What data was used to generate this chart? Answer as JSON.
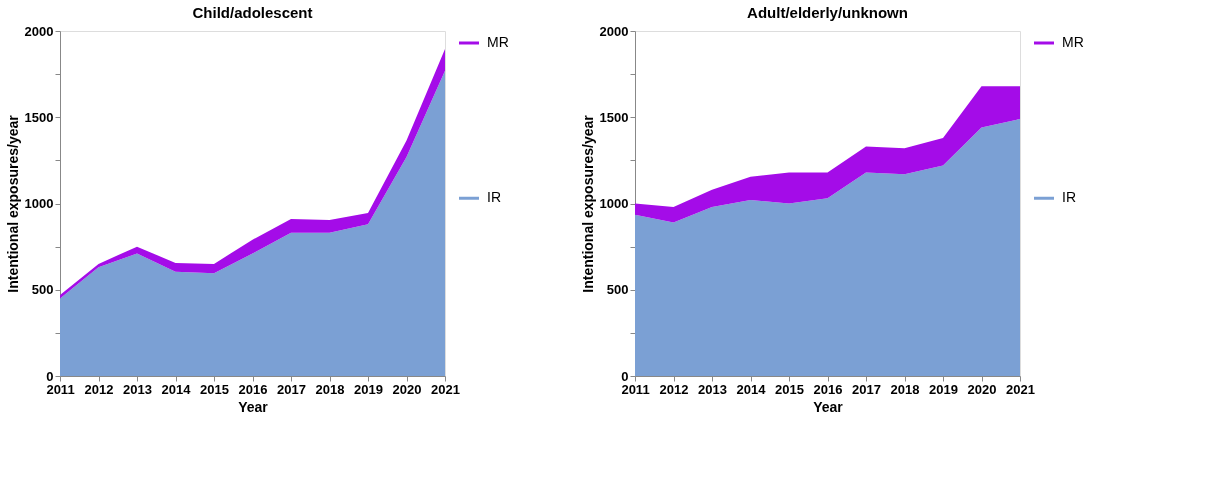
{
  "chart_data": [
    {
      "type": "area",
      "title": "Child/adolescent",
      "xlabel": "Year",
      "ylabel": "Intentional exposures/year",
      "stacked": true,
      "legend": "right",
      "grid": false,
      "x": [
        2011,
        2012,
        2013,
        2014,
        2015,
        2016,
        2017,
        2018,
        2019,
        2020,
        2021
      ],
      "series": [
        {
          "name": "IR",
          "color": "#7ba0d4",
          "values": [
            450,
            630,
            710,
            605,
            595,
            710,
            830,
            830,
            880,
            1270,
            1770
          ]
        },
        {
          "name": "MR",
          "color": "#a40ce8",
          "values": [
            20,
            20,
            40,
            50,
            55,
            80,
            80,
            75,
            65,
            95,
            125
          ]
        }
      ],
      "xlim": [
        2011,
        2021
      ],
      "xticks": [
        2011,
        2012,
        2013,
        2014,
        2015,
        2016,
        2017,
        2018,
        2019,
        2020,
        2021
      ],
      "ylim": [
        0,
        2000
      ],
      "yticks": [
        0,
        {
          "value": 250,
          "label": null
        },
        500,
        {
          "value": 750,
          "label": null
        },
        1000,
        {
          "value": 1250,
          "label": null
        },
        1500,
        {
          "value": 1750,
          "label": null
        },
        2000
      ]
    },
    {
      "type": "area",
      "title": "Adult/elderly/unknown",
      "xlabel": "Year",
      "ylabel": "Intentional exposures/year",
      "stacked": true,
      "legend": "right",
      "grid": false,
      "x": [
        2011,
        2012,
        2013,
        2014,
        2015,
        2016,
        2017,
        2018,
        2019,
        2020,
        2021
      ],
      "series": [
        {
          "name": "IR",
          "color": "#7ba0d4",
          "values": [
            935,
            890,
            980,
            1020,
            1000,
            1030,
            1180,
            1170,
            1220,
            1440,
            1490
          ]
        },
        {
          "name": "MR",
          "color": "#a40ce8",
          "values": [
            65,
            90,
            100,
            135,
            180,
            150,
            150,
            150,
            160,
            240,
            190
          ]
        }
      ],
      "xlim": [
        2011,
        2021
      ],
      "xticks": [
        2011,
        2012,
        2013,
        2014,
        2015,
        2016,
        2017,
        2018,
        2019,
        2020,
        2021
      ],
      "ylim": [
        0,
        2000
      ],
      "yticks": [
        0,
        {
          "value": 250,
          "label": null
        },
        500,
        {
          "value": 750,
          "label": null
        },
        1000,
        {
          "value": 1250,
          "label": null
        },
        1500,
        {
          "value": 1750,
          "label": null
        },
        2000
      ]
    }
  ]
}
